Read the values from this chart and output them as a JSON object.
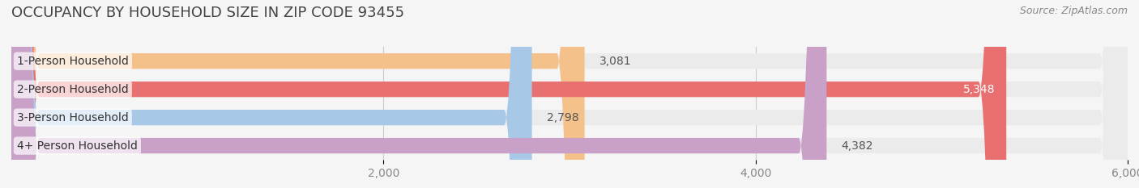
{
  "title": "OCCUPANCY BY HOUSEHOLD SIZE IN ZIP CODE 93455",
  "source": "Source: ZipAtlas.com",
  "categories": [
    "1-Person Household",
    "2-Person Household",
    "3-Person Household",
    "4+ Person Household"
  ],
  "values": [
    3081,
    5348,
    2798,
    4382
  ],
  "bar_colors": [
    "#f5c18a",
    "#e87070",
    "#a8c8e8",
    "#c9a0c8"
  ],
  "label_colors": [
    "#555555",
    "#ffffff",
    "#555555",
    "#555555"
  ],
  "bg_color": "#f5f5f5",
  "bar_bg_color": "#ebebeb",
  "xlim": [
    0,
    6000
  ],
  "xticks": [
    2000,
    4000,
    6000
  ],
  "title_fontsize": 13,
  "label_fontsize": 10,
  "value_fontsize": 10,
  "source_fontsize": 9,
  "bar_height": 0.55
}
